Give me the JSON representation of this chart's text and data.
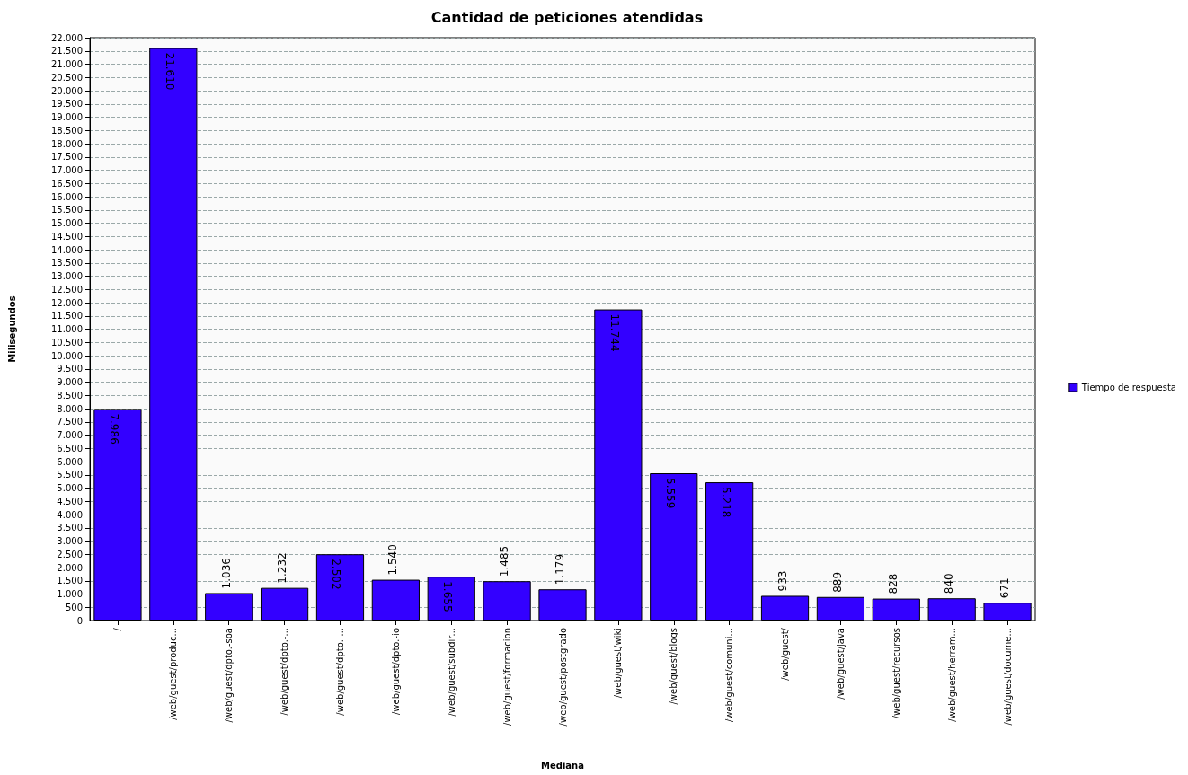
{
  "chart_data": {
    "type": "bar",
    "title": "Cantidad de peticiones atendidas",
    "xlabel": "Mediana",
    "ylabel": "Milisegundos",
    "categories": [
      "/",
      "/web/guest/produc...",
      "/web/guest/dpto.-soa",
      "/web/guest/dpto.-...",
      "/web/guest/dpto.-...",
      "/web/guest/dpto.-io",
      "/web/guest/subdir...",
      "/web/guest/formacion",
      "/web/guest/postgrado",
      "/web/guest/wiki",
      "/web/guest/blogs",
      "/web/guest/comuni...",
      "/web/guest/",
      "/web/guest/java",
      "/web/guest/recursos",
      "/web/guest/herram...",
      "/web/guest/docume..."
    ],
    "series": [
      {
        "name": "Tiempo de respuesta",
        "color": "#3300ff",
        "values": [
          7986,
          21610,
          1036,
          1232,
          2502,
          1540,
          1655,
          1485,
          1179,
          11744,
          5559,
          5218,
          933,
          889,
          828,
          840,
          671
        ],
        "value_labels": [
          "7.986",
          "21.610",
          "1.036",
          "1.232",
          "2.502",
          "1.540",
          "1.655",
          "1.485",
          "1.179",
          "11.744",
          "5.559",
          "5.218",
          "933",
          "889",
          "828",
          "840",
          "671"
        ]
      }
    ],
    "ylim": [
      0,
      22000
    ],
    "yticks": [
      {
        "value": 0,
        "label": "0"
      },
      {
        "value": 500,
        "label": "500"
      },
      {
        "value": 1000,
        "label": "1.000"
      },
      {
        "value": 1500,
        "label": "1.500"
      },
      {
        "value": 2000,
        "label": "2.000"
      },
      {
        "value": 2500,
        "label": "2.500"
      },
      {
        "value": 3000,
        "label": "3.000"
      },
      {
        "value": 3500,
        "label": "3.500"
      },
      {
        "value": 4000,
        "label": "4.000"
      },
      {
        "value": 4500,
        "label": "4.500"
      },
      {
        "value": 5000,
        "label": "5.000"
      },
      {
        "value": 5500,
        "label": "5.500"
      },
      {
        "value": 6000,
        "label": "6.000"
      },
      {
        "value": 6500,
        "label": "6.500"
      },
      {
        "value": 7000,
        "label": "7.000"
      },
      {
        "value": 7500,
        "label": "7.500"
      },
      {
        "value": 8000,
        "label": "8.000"
      },
      {
        "value": 8500,
        "label": "8.500"
      },
      {
        "value": 9000,
        "label": "9.000"
      },
      {
        "value": 9500,
        "label": "9.500"
      },
      {
        "value": 10000,
        "label": "10.000"
      },
      {
        "value": 10500,
        "label": "10.500"
      },
      {
        "value": 11000,
        "label": "11.000"
      },
      {
        "value": 11500,
        "label": "11.500"
      },
      {
        "value": 12000,
        "label": "12.000"
      },
      {
        "value": 12500,
        "label": "12.500"
      },
      {
        "value": 13000,
        "label": "13.000"
      },
      {
        "value": 13500,
        "label": "13.500"
      },
      {
        "value": 14000,
        "label": "14.000"
      },
      {
        "value": 14500,
        "label": "14.500"
      },
      {
        "value": 15000,
        "label": "15.000"
      },
      {
        "value": 15500,
        "label": "15.500"
      },
      {
        "value": 16000,
        "label": "16.000"
      },
      {
        "value": 16500,
        "label": "16.500"
      },
      {
        "value": 17000,
        "label": "17.000"
      },
      {
        "value": 17500,
        "label": "17.500"
      },
      {
        "value": 18000,
        "label": "18.000"
      },
      {
        "value": 18500,
        "label": "18.500"
      },
      {
        "value": 19000,
        "label": "19.000"
      },
      {
        "value": 19500,
        "label": "19.500"
      },
      {
        "value": 20000,
        "label": "20.000"
      },
      {
        "value": 20500,
        "label": "20.500"
      },
      {
        "value": 21000,
        "label": "21.000"
      },
      {
        "value": 21500,
        "label": "21.500"
      },
      {
        "value": 22000,
        "label": "22.000"
      }
    ],
    "grid": "y",
    "legend": "right"
  }
}
